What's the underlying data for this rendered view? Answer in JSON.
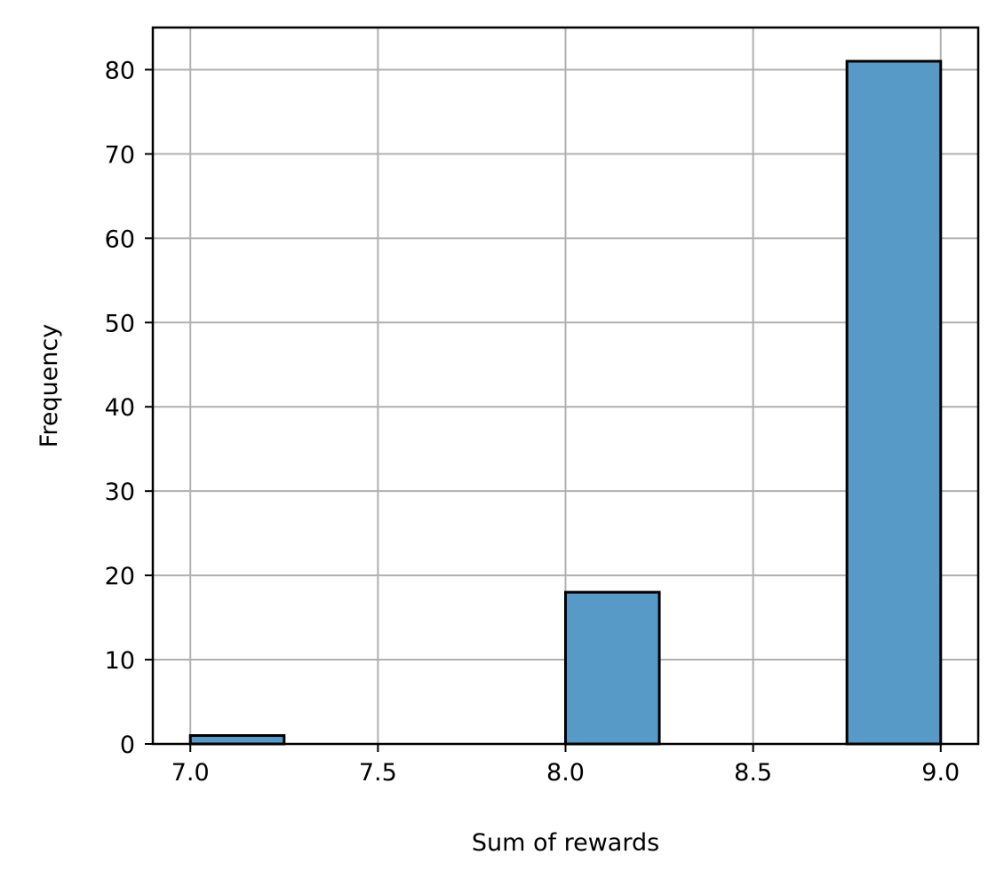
{
  "chart_data": {
    "type": "bar",
    "subtype": "histogram",
    "title": "",
    "xlabel": "Sum of rewards",
    "ylabel": "Frequency",
    "bins": [
      {
        "start": 7.0,
        "end": 7.25,
        "count": 1
      },
      {
        "start": 7.25,
        "end": 7.5,
        "count": 0
      },
      {
        "start": 7.5,
        "end": 7.75,
        "count": 0
      },
      {
        "start": 7.75,
        "end": 8.0,
        "count": 0
      },
      {
        "start": 8.0,
        "end": 8.25,
        "count": 18
      },
      {
        "start": 8.25,
        "end": 8.5,
        "count": 0
      },
      {
        "start": 8.5,
        "end": 8.75,
        "count": 0
      },
      {
        "start": 8.75,
        "end": 9.0,
        "count": 81
      }
    ],
    "xlim": [
      6.9,
      9.1
    ],
    "ylim": [
      0,
      85
    ],
    "x_ticks": [
      "7.0",
      "7.5",
      "8.0",
      "8.5",
      "9.0"
    ],
    "y_ticks": [
      "0",
      "10",
      "20",
      "30",
      "40",
      "50",
      "60",
      "70",
      "80"
    ],
    "grid": true,
    "legend": "none",
    "colors": {
      "bar_fill": "#5799c7",
      "bar_edge": "#000000",
      "grid": "#b0b0b0",
      "axes": "#000000"
    }
  }
}
